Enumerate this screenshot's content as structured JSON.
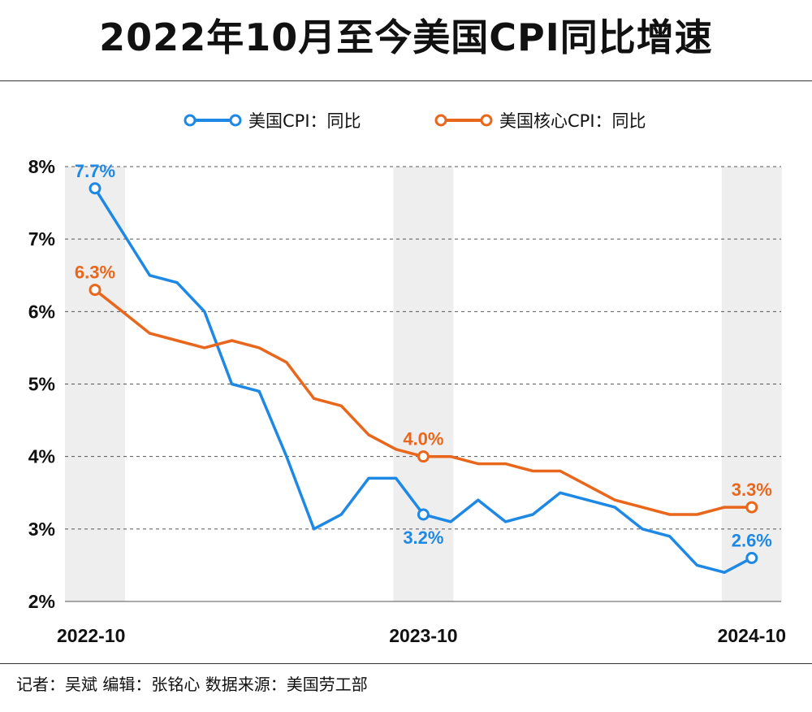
{
  "title": "2022年10月至今美国CPI同比增速",
  "credits": "记者：吴斌   编辑：张铭心   数据来源：美国劳工部",
  "colors": {
    "cpi": "#1e88e5",
    "core": "#e8671c",
    "band": "#eeeeee",
    "grid": "#555555"
  },
  "chart_data": {
    "type": "line",
    "title": "2022年10月至今美国CPI同比增速",
    "x": [
      "2022-10",
      "2022-11",
      "2022-12",
      "2023-01",
      "2023-02",
      "2023-03",
      "2023-04",
      "2023-05",
      "2023-06",
      "2023-07",
      "2023-08",
      "2023-09",
      "2023-10",
      "2023-11",
      "2023-12",
      "2024-01",
      "2024-02",
      "2024-03",
      "2024-04",
      "2024-05",
      "2024-06",
      "2024-07",
      "2024-08",
      "2024-09",
      "2024-10"
    ],
    "x_tick_labels": [
      "2022-10",
      "2023-10",
      "2024-10"
    ],
    "y_tick_labels": [
      "2%",
      "3%",
      "4%",
      "5%",
      "6%",
      "7%",
      "8%"
    ],
    "ylim": [
      2,
      8
    ],
    "grid": true,
    "legend_position": "top",
    "series": [
      {
        "name": "美国CPI：同比",
        "color": "#1e88e5",
        "values": [
          7.7,
          7.1,
          6.5,
          6.4,
          6.0,
          5.0,
          4.9,
          4.0,
          3.0,
          3.2,
          3.7,
          3.7,
          3.2,
          3.1,
          3.4,
          3.1,
          3.2,
          3.5,
          3.4,
          3.3,
          3.0,
          2.9,
          2.5,
          2.4,
          2.6
        ],
        "labels": [
          {
            "index": 0,
            "text": "7.7%",
            "position": "above"
          },
          {
            "index": 12,
            "text": "3.2%",
            "position": "below"
          },
          {
            "index": 24,
            "text": "2.6%",
            "position": "above"
          }
        ]
      },
      {
        "name": "美国核心CPI：同比",
        "color": "#e8671c",
        "values": [
          6.3,
          6.0,
          5.7,
          5.6,
          5.5,
          5.6,
          5.5,
          5.3,
          4.8,
          4.7,
          4.3,
          4.1,
          4.0,
          4.0,
          3.9,
          3.9,
          3.8,
          3.8,
          3.6,
          3.4,
          3.3,
          3.2,
          3.2,
          3.3,
          3.3
        ],
        "labels": [
          {
            "index": 0,
            "text": "6.3%",
            "position": "above"
          },
          {
            "index": 12,
            "text": "4.0%",
            "position": "above"
          },
          {
            "index": 24,
            "text": "3.3%",
            "position": "above"
          }
        ]
      }
    ]
  }
}
